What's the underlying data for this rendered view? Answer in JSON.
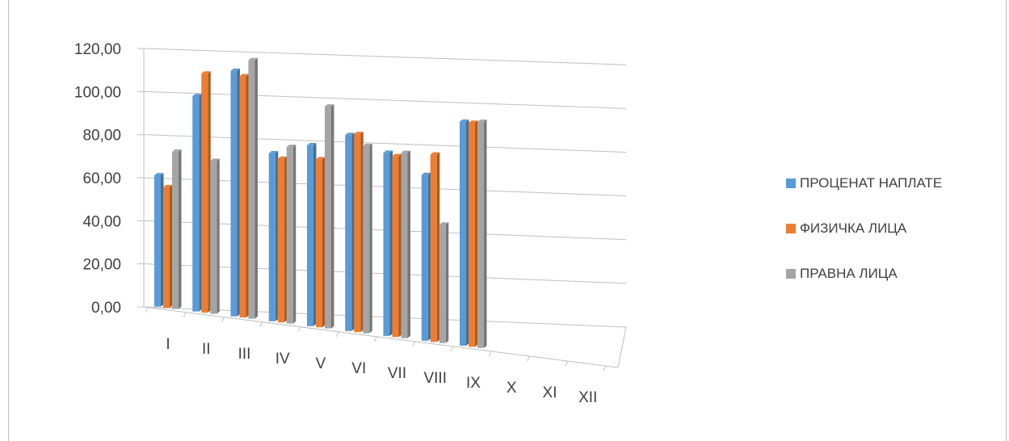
{
  "chart_data": {
    "type": "bar",
    "categories": [
      "I",
      "II",
      "III",
      "IV",
      "V",
      "VI",
      "VII",
      "VIII",
      "IX",
      "X",
      "XI",
      "XII"
    ],
    "series": [
      {
        "name": "ПРОЦЕНАТ НАПЛАТЕ",
        "color": "#5b9bd5",
        "values": [
          61,
          100,
          114,
          78,
          84,
          91,
          85,
          77,
          104,
          null,
          null,
          null
        ]
      },
      {
        "name": "ФИЗИЧКА ЛИЦА",
        "color": "#ed7d31",
        "values": [
          56,
          111,
          112,
          76,
          78,
          92,
          84,
          87,
          104,
          null,
          null,
          null
        ]
      },
      {
        "name": "ПРАВНА ЛИЦА",
        "color": "#a5a5a5",
        "values": [
          73,
          71,
          120,
          82,
          103,
          87,
          86,
          55,
          105,
          null,
          null,
          null
        ]
      }
    ],
    "yticks": [
      "0,00",
      "20,00",
      "40,00",
      "60,00",
      "80,00",
      "100,00",
      "120,00"
    ],
    "ylim": [
      0,
      120
    ],
    "title": "",
    "xlabel": "",
    "ylabel": "",
    "grid": true,
    "legend": "right"
  }
}
